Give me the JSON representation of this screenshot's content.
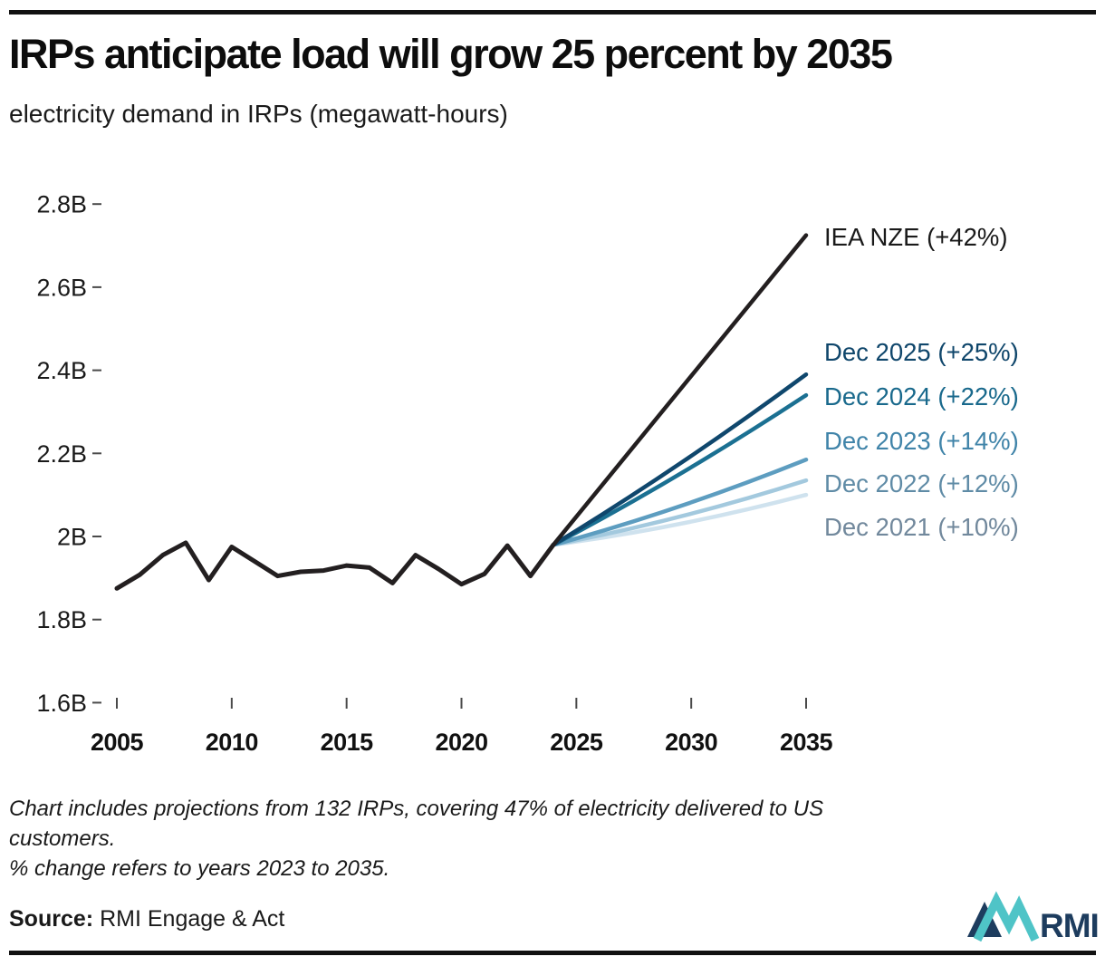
{
  "header": {
    "title": "IRPs anticipate load will grow 25 percent by 2035",
    "subtitle": "electricity demand in IRPs (megawatt-hours)"
  },
  "footnotes": {
    "line1": "Chart includes projections from 132 IRPs, covering 47% of electricity delivered to US customers.",
    "line2": "% change refers to years 2023 to 2035."
  },
  "source": {
    "label": "Source:",
    "value": "RMI Engage & Act",
    "logo_text": "RMI"
  },
  "colors": {
    "rule_black": "#111111",
    "line_black": "#231f20",
    "logo_navy": "#1d3c5e",
    "logo_teal": "#4fc4c7"
  },
  "chart_data": {
    "type": "line",
    "title": "IRPs anticipate load will grow 25 percent by 2035",
    "subtitle": "electricity demand in IRPs (megawatt-hours)",
    "ylabel": "electricity demand in IRPs (megawatt-hours)",
    "xlabel": "",
    "xlim": [
      2005,
      2035
    ],
    "ylim_billions": [
      1.6,
      2.8
    ],
    "grid": false,
    "legend_position": "right-of-line-ends",
    "x_axis": {
      "ticks": [
        2005,
        2010,
        2015,
        2020,
        2025,
        2030,
        2035
      ]
    },
    "y_axis": {
      "ticks": [
        {
          "label": "2.8B",
          "value": 2.8
        },
        {
          "label": "2.6B",
          "value": 2.6
        },
        {
          "label": "2.4B",
          "value": 2.4
        },
        {
          "label": "2.2B",
          "value": 2.2
        },
        {
          "label": "2B",
          "value": 2.0
        },
        {
          "label": "1.8B",
          "value": 1.8
        },
        {
          "label": "1.6B",
          "value": 1.6
        }
      ]
    },
    "series": [
      {
        "name": "Historical IRP electricity demand (B MWh)",
        "color": "#231f20",
        "x": [
          2005,
          2006,
          2007,
          2008,
          2009,
          2010,
          2011,
          2012,
          2013,
          2014,
          2015,
          2016,
          2017,
          2018,
          2019,
          2020,
          2021,
          2022,
          2023,
          2024
        ],
        "values": [
          1.875,
          1.908,
          1.955,
          1.985,
          1.895,
          1.975,
          1.94,
          1.905,
          1.915,
          1.918,
          1.93,
          1.925,
          1.888,
          1.955,
          1.922,
          1.885,
          1.91,
          1.978,
          1.905,
          1.98
        ]
      },
      {
        "name": "IEA NZE (+42%)",
        "pct_change_2023_2035": 42,
        "color": "#231f20",
        "label_color": "#1a1a1a",
        "x": [
          2024,
          2035
        ],
        "values": [
          1.98,
          2.725
        ]
      },
      {
        "name": "Dec 2025 (+25%)",
        "pct_change_2023_2035": 25,
        "color": "#0f476d",
        "label_color": "#0f466b",
        "x": [
          2024,
          2035
        ],
        "values": [
          1.98,
          2.39
        ]
      },
      {
        "name": "Dec 2024 (+22%)",
        "pct_change_2023_2035": 22,
        "color": "#1b7092",
        "label_color": "#19698c",
        "x": [
          2024,
          2035
        ],
        "values": [
          1.98,
          2.34
        ]
      },
      {
        "name": "Dec 2023 (+14%)",
        "pct_change_2023_2035": 14,
        "color": "#5d9dc0",
        "label_color": "#4084a9",
        "x": [
          2024,
          2035
        ],
        "values": [
          1.98,
          2.185
        ]
      },
      {
        "name": "Dec 2022 (+12%)",
        "pct_change_2023_2035": 12,
        "color": "#a3c9de",
        "label_color": "#5f8ba6",
        "x": [
          2024,
          2035
        ],
        "values": [
          1.98,
          2.135
        ]
      },
      {
        "name": "Dec 2021 (+10%)",
        "pct_change_2023_2035": 10,
        "color": "#cfe2ee",
        "label_color": "#71889c",
        "x": [
          2024,
          2035
        ],
        "values": [
          1.98,
          2.1
        ]
      }
    ]
  }
}
